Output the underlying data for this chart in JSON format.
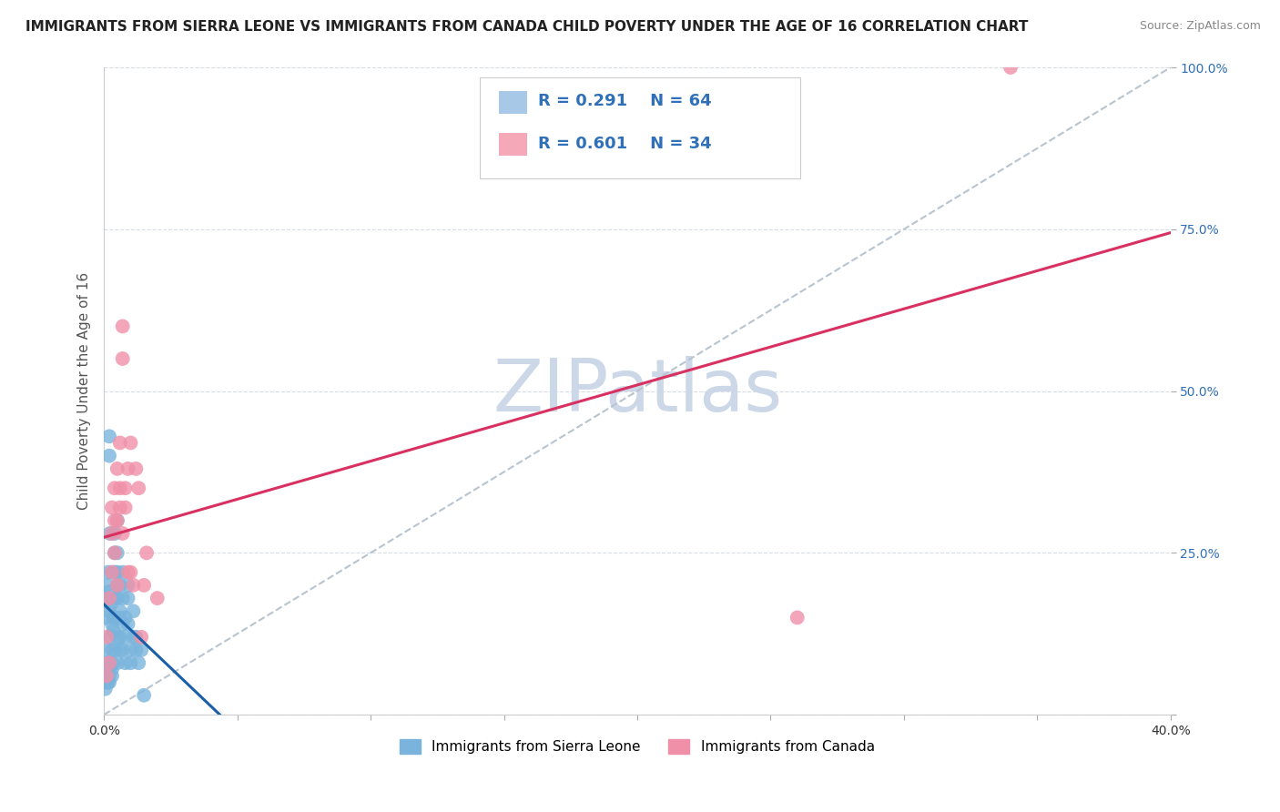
{
  "title": "IMMIGRANTS FROM SIERRA LEONE VS IMMIGRANTS FROM CANADA CHILD POVERTY UNDER THE AGE OF 16 CORRELATION CHART",
  "source_text": "Source: ZipAtlas.com",
  "ylabel": "Child Poverty Under the Age of 16",
  "xlim": [
    0.0,
    0.4
  ],
  "ylim": [
    0.0,
    1.0
  ],
  "xticks": [
    0.0,
    0.05,
    0.1,
    0.15,
    0.2,
    0.25,
    0.3,
    0.35,
    0.4
  ],
  "yticks": [
    0.0,
    0.25,
    0.5,
    0.75,
    1.0
  ],
  "legend_entries": [
    {
      "label": "Immigrants from Sierra Leone",
      "color": "#a8c8e8",
      "R": "0.291",
      "N": "64"
    },
    {
      "label": "Immigrants from Canada",
      "color": "#f4a8b8",
      "R": "0.601",
      "N": "34"
    }
  ],
  "sierra_leone_points": [
    [
      0.0005,
      0.18
    ],
    [
      0.0008,
      0.15
    ],
    [
      0.001,
      0.1
    ],
    [
      0.0012,
      0.2
    ],
    [
      0.0015,
      0.22
    ],
    [
      0.0018,
      0.19
    ],
    [
      0.002,
      0.43
    ],
    [
      0.002,
      0.4
    ],
    [
      0.002,
      0.16
    ],
    [
      0.0022,
      0.28
    ],
    [
      0.0025,
      0.17
    ],
    [
      0.0025,
      0.12
    ],
    [
      0.003,
      0.22
    ],
    [
      0.003,
      0.14
    ],
    [
      0.003,
      0.1
    ],
    [
      0.003,
      0.08
    ],
    [
      0.0035,
      0.15
    ],
    [
      0.0035,
      0.13
    ],
    [
      0.004,
      0.28
    ],
    [
      0.004,
      0.25
    ],
    [
      0.004,
      0.15
    ],
    [
      0.004,
      0.1
    ],
    [
      0.004,
      0.22
    ],
    [
      0.004,
      0.18
    ],
    [
      0.005,
      0.08
    ],
    [
      0.005,
      0.12
    ],
    [
      0.005,
      0.2
    ],
    [
      0.005,
      0.25
    ],
    [
      0.005,
      0.3
    ],
    [
      0.005,
      0.22
    ],
    [
      0.005,
      0.18
    ],
    [
      0.006,
      0.1
    ],
    [
      0.006,
      0.15
    ],
    [
      0.006,
      0.12
    ],
    [
      0.006,
      0.2
    ],
    [
      0.006,
      0.16
    ],
    [
      0.007,
      0.22
    ],
    [
      0.007,
      0.18
    ],
    [
      0.007,
      0.1
    ],
    [
      0.007,
      0.14
    ],
    [
      0.008,
      0.08
    ],
    [
      0.008,
      0.12
    ],
    [
      0.008,
      0.15
    ],
    [
      0.009,
      0.18
    ],
    [
      0.009,
      0.2
    ],
    [
      0.009,
      0.14
    ],
    [
      0.01,
      0.1
    ],
    [
      0.01,
      0.08
    ],
    [
      0.011,
      0.12
    ],
    [
      0.011,
      0.16
    ],
    [
      0.012,
      0.1
    ],
    [
      0.012,
      0.12
    ],
    [
      0.013,
      0.08
    ],
    [
      0.014,
      0.1
    ],
    [
      0.001,
      0.08
    ],
    [
      0.001,
      0.07
    ],
    [
      0.0015,
      0.05
    ],
    [
      0.002,
      0.05
    ],
    [
      0.002,
      0.06
    ],
    [
      0.0008,
      0.05
    ],
    [
      0.0005,
      0.04
    ],
    [
      0.003,
      0.07
    ],
    [
      0.003,
      0.06
    ],
    [
      0.015,
      0.03
    ]
  ],
  "canada_points": [
    [
      0.001,
      0.06
    ],
    [
      0.001,
      0.12
    ],
    [
      0.002,
      0.08
    ],
    [
      0.002,
      0.18
    ],
    [
      0.003,
      0.28
    ],
    [
      0.003,
      0.22
    ],
    [
      0.003,
      0.32
    ],
    [
      0.004,
      0.35
    ],
    [
      0.004,
      0.3
    ],
    [
      0.004,
      0.25
    ],
    [
      0.005,
      0.3
    ],
    [
      0.005,
      0.38
    ],
    [
      0.005,
      0.2
    ],
    [
      0.006,
      0.42
    ],
    [
      0.006,
      0.35
    ],
    [
      0.006,
      0.32
    ],
    [
      0.007,
      0.55
    ],
    [
      0.007,
      0.6
    ],
    [
      0.007,
      0.28
    ],
    [
      0.008,
      0.35
    ],
    [
      0.008,
      0.32
    ],
    [
      0.009,
      0.22
    ],
    [
      0.009,
      0.38
    ],
    [
      0.01,
      0.42
    ],
    [
      0.01,
      0.22
    ],
    [
      0.011,
      0.2
    ],
    [
      0.012,
      0.38
    ],
    [
      0.013,
      0.35
    ],
    [
      0.014,
      0.12
    ],
    [
      0.015,
      0.2
    ],
    [
      0.016,
      0.25
    ],
    [
      0.02,
      0.18
    ],
    [
      0.26,
      0.15
    ],
    [
      0.34,
      1.0
    ]
  ],
  "sierra_leone_color": "#7ab4dc",
  "canada_color": "#f090a8",
  "sierra_leone_line_color": "#1a5fa8",
  "canada_line_color": "#d83060",
  "trend_line_color": "#b8c4d0",
  "background_color": "#ffffff",
  "grid_color": "#d8dce4",
  "watermark_text": "ZIPatlas",
  "watermark_color": "#ccd8e8",
  "title_fontsize": 11,
  "axis_label_fontsize": 11,
  "tick_fontsize": 10,
  "legend_R_color": "#3070b8"
}
